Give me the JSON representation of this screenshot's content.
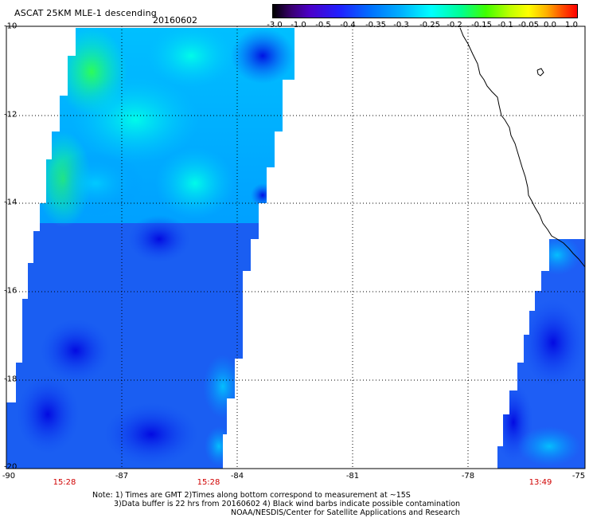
{
  "header": {
    "title": "ASCAT 25KM MLE-1 descending",
    "date": "20160602"
  },
  "colorbar": {
    "labels": [
      "-3.0",
      "-1.0",
      "-0.5",
      "-0.4",
      "-0.35",
      "-0.3",
      "-0.25",
      "-0.2",
      "-0.15",
      "-0.1",
      "-0.05",
      "0.0",
      "1.0"
    ]
  },
  "axes": {
    "lat_labels": [
      "-10",
      "-12",
      "-14",
      "-16",
      "-18",
      "-20"
    ],
    "lon_labels": [
      "-90",
      "-87",
      "-84",
      "-81",
      "-78",
      "-75"
    ]
  },
  "swath_times": [
    "15:28",
    "15:28",
    "13:49"
  ],
  "notes": {
    "line1": "Note: 1) Times are GMT 2)Times along bottom correspond to measurement at ~15S",
    "line2": "3)Data buffer is 22 hrs from 20160602 4) Black wind barbs indicate possible contamination",
    "line3": "NOAA/NESDIS/Center for Satellite Applications and Research"
  },
  "colors": {
    "deep_blue": "#0000e0",
    "blue": "#1e5ef5",
    "light_blue": "#00c8ff",
    "cyan": "#00ffe0",
    "green": "#30ff50"
  }
}
